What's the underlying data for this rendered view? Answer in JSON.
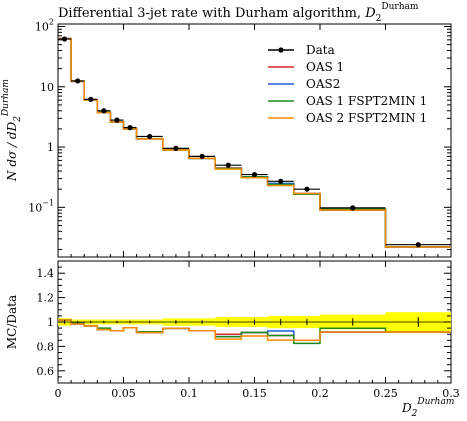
{
  "title_main": "Differential 3-jet rate with Durham algorithm, ",
  "title_var": "D",
  "title_sub": "2",
  "title_sup": "Durham",
  "upper_ylabel": "N dσ / dD",
  "upper_ylabel_sub": "2",
  "upper_ylabel_sup": "Durham",
  "lower_ylabel": "MC/Data",
  "xlabel_var": "D",
  "xlabel_sub": "2",
  "xlabel_sup": "Durham",
  "upper_yticks": [
    {
      "label": "10",
      "exp": "2",
      "value": 100
    },
    {
      "label": "10",
      "exp": "",
      "value": 10
    },
    {
      "label": "1",
      "exp": "",
      "value": 1
    },
    {
      "label": "10",
      "exp": "−1",
      "value": 0.1
    }
  ],
  "lower_yticks": [
    "1.4",
    "1.2",
    "1",
    "0.8",
    "0.6"
  ],
  "xticks": [
    "0",
    "0.05",
    "0.1",
    "0.15",
    "0.2",
    "0.25",
    "0.3"
  ],
  "chart_data": {
    "type": "line",
    "scale": "log",
    "xlim": [
      0,
      0.3
    ],
    "ylim": [
      0.015,
      110
    ],
    "ratio_ylim": [
      0.5,
      1.5
    ],
    "edges": [
      0,
      0.01,
      0.02,
      0.03,
      0.04,
      0.05,
      0.06,
      0.08,
      0.1,
      0.12,
      0.14,
      0.16,
      0.18,
      0.2,
      0.25,
      0.3
    ],
    "data": {
      "name": "Data",
      "x": [
        0.005,
        0.015,
        0.025,
        0.035,
        0.045,
        0.055,
        0.07,
        0.09,
        0.11,
        0.13,
        0.15,
        0.17,
        0.19,
        0.225,
        0.275
      ],
      "y": [
        62,
        12.5,
        6.2,
        4.0,
        2.8,
        2.1,
        1.5,
        0.95,
        0.7,
        0.5,
        0.35,
        0.27,
        0.2,
        0.098,
        0.024
      ]
    },
    "band": [
      0.03,
      0.02,
      0.02,
      0.02,
      0.02,
      0.02,
      0.02,
      0.03,
      0.03,
      0.04,
      0.04,
      0.05,
      0.05,
      0.06,
      0.08
    ],
    "series": [
      {
        "name": "OAS 1",
        "color": "#d62728",
        "values": [
          63,
          12.3,
          6.0,
          3.75,
          2.6,
          2.0,
          1.37,
          0.9,
          0.65,
          0.45,
          0.32,
          0.24,
          0.17,
          0.09,
          0.022
        ]
      },
      {
        "name": "OAS2",
        "color": "#1f5fd6",
        "values": [
          63,
          12.3,
          6.0,
          3.75,
          2.6,
          2.0,
          1.37,
          0.9,
          0.65,
          0.44,
          0.32,
          0.25,
          0.17,
          0.09,
          0.022
        ]
      },
      {
        "name": "OAS 1 FSPT2MIN 1",
        "color": "#1b8a1b",
        "values": [
          63,
          12.4,
          6.0,
          3.8,
          2.6,
          2.0,
          1.38,
          0.9,
          0.65,
          0.44,
          0.32,
          0.24,
          0.165,
          0.093,
          0.022
        ]
      },
      {
        "name": "OAS 2 FSPT2MIN 1",
        "color": "#ff8c00",
        "values": [
          63,
          12.3,
          6.0,
          3.75,
          2.6,
          2.0,
          1.37,
          0.9,
          0.65,
          0.43,
          0.31,
          0.23,
          0.17,
          0.09,
          0.022
        ]
      }
    ]
  }
}
